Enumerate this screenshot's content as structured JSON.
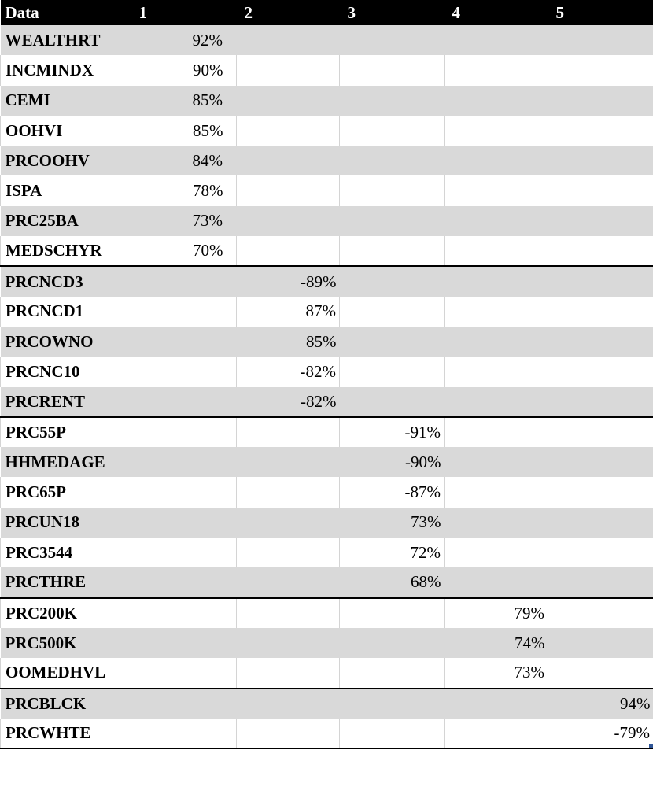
{
  "header": {
    "label_col": "Data",
    "factors": [
      "1",
      "2",
      "3",
      "4",
      "5"
    ]
  },
  "rows": [
    {
      "label": "WEALTHRT",
      "factor": 1,
      "value": "92%"
    },
    {
      "label": "INCMINDX",
      "factor": 1,
      "value": "90%"
    },
    {
      "label": "CEMI",
      "factor": 1,
      "value": "85%"
    },
    {
      "label": "OOHVI",
      "factor": 1,
      "value": "85%"
    },
    {
      "label": "PRCOOHV",
      "factor": 1,
      "value": "84%"
    },
    {
      "label": "ISPA",
      "factor": 1,
      "value": "78%"
    },
    {
      "label": "PRC25BA",
      "factor": 1,
      "value": "73%"
    },
    {
      "label": "MEDSCHYR",
      "factor": 1,
      "value": "70%"
    },
    {
      "label": "PRCNCD3",
      "factor": 2,
      "value": "-89%"
    },
    {
      "label": "PRCNCD1",
      "factor": 2,
      "value": "87%"
    },
    {
      "label": "PRCOWNO",
      "factor": 2,
      "value": "85%"
    },
    {
      "label": "PRCNC10",
      "factor": 2,
      "value": "-82%"
    },
    {
      "label": "PRCRENT",
      "factor": 2,
      "value": "-82%"
    },
    {
      "label": "PRC55P",
      "factor": 3,
      "value": "-91%"
    },
    {
      "label": "HHMEDAGE",
      "factor": 3,
      "value": "-90%"
    },
    {
      "label": "PRC65P",
      "factor": 3,
      "value": "-87%"
    },
    {
      "label": "PRCUN18",
      "factor": 3,
      "value": "73%"
    },
    {
      "label": "PRC3544",
      "factor": 3,
      "value": "72%"
    },
    {
      "label": "PRCTHRE",
      "factor": 3,
      "value": "68%"
    },
    {
      "label": "PRC200K",
      "factor": 4,
      "value": "79%"
    },
    {
      "label": "PRC500K",
      "factor": 4,
      "value": "74%"
    },
    {
      "label": "OOMEDHVL",
      "factor": 4,
      "value": "73%"
    },
    {
      "label": "PRCBLCK",
      "factor": 5,
      "value": "94%"
    },
    {
      "label": "PRCWHTE",
      "factor": 5,
      "value": "-79%"
    }
  ],
  "colors": {
    "header_bg": "#000000",
    "header_text": "#ffffff",
    "band_shaded": "#d9d9d9",
    "band_plain": "#ffffff",
    "group_rule": "#000000"
  }
}
